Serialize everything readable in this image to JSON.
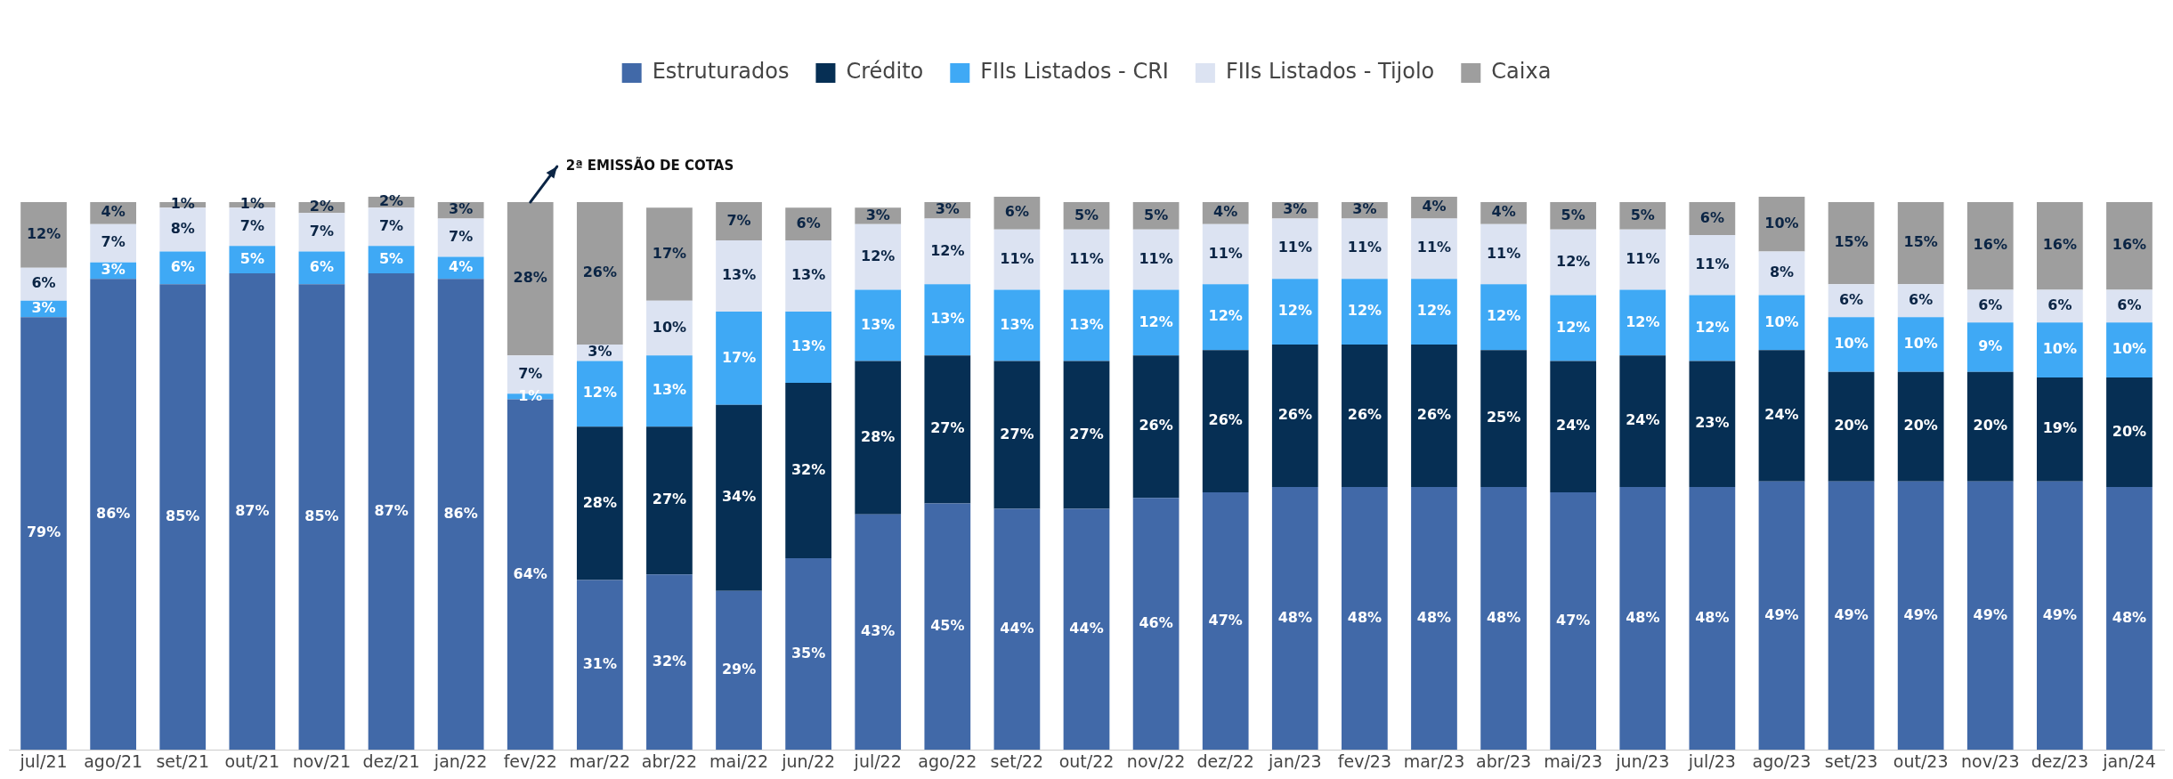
{
  "chart_data": {
    "type": "bar",
    "stacked": true,
    "legend": "top",
    "grid": false,
    "tick_labels": "x",
    "categories": [
      "jul/21",
      "ago/21",
      "set/21",
      "out/21",
      "nov/21",
      "dez/21",
      "jan/22",
      "fev/22",
      "mar/22",
      "abr/22",
      "mai/22",
      "jun/22",
      "jul/22",
      "ago/22",
      "set/22",
      "out/22",
      "nov/22",
      "dez/22",
      "jan/23",
      "fev/23",
      "mar/23",
      "abr/23",
      "mai/23",
      "jun/23",
      "jul/23",
      "ago/23",
      "set/23",
      "out/23",
      "nov/23",
      "dez/23",
      "jan/24"
    ],
    "series": [
      {
        "name": "Estruturados",
        "color": "#4169a8",
        "values": [
          79,
          86,
          85,
          87,
          85,
          87,
          86,
          64,
          31,
          32,
          29,
          35,
          43,
          45,
          44,
          44,
          46,
          47,
          48,
          48,
          48,
          48,
          47,
          48,
          48,
          49,
          49,
          49,
          49,
          49,
          48
        ],
        "value_labels": [
          "79%",
          "86%",
          "85%",
          "87%",
          "85%",
          "87%",
          "86%",
          "64%",
          "31%",
          "32%",
          "29%",
          "35%",
          "43%",
          "45%",
          "44%",
          "44%",
          "46%",
          "47%",
          "48%",
          "48%",
          "48%",
          "48%",
          "47%",
          "48%",
          "48%",
          "49%",
          "49%",
          "49%",
          "49%",
          "49%",
          "48%"
        ]
      },
      {
        "name": "Crédito",
        "color": "#062f54",
        "values": [
          null,
          null,
          null,
          null,
          null,
          null,
          null,
          null,
          28,
          27,
          34,
          32,
          28,
          27,
          27,
          27,
          26,
          26,
          26,
          26,
          26,
          25,
          24,
          24,
          23,
          24,
          20,
          20,
          20,
          19,
          20
        ],
        "value_labels": [
          null,
          null,
          null,
          null,
          null,
          null,
          null,
          null,
          "28%",
          "27%",
          "34%",
          "32%",
          "28%",
          "27%",
          "27%",
          "27%",
          "26%",
          "26%",
          "26%",
          "26%",
          "26%",
          "25%",
          "24%",
          "24%",
          "23%",
          "24%",
          "20%",
          "20%",
          "20%",
          "19%",
          "20%"
        ]
      },
      {
        "name": "FIIs Listados - CRI",
        "color": "#3fa9f5",
        "values": [
          3,
          3,
          6,
          5,
          6,
          5,
          4,
          1,
          12,
          13,
          17,
          13,
          13,
          13,
          13,
          13,
          12,
          12,
          12,
          12,
          12,
          12,
          12,
          12,
          12,
          10,
          10,
          10,
          9,
          10,
          10
        ],
        "value_labels": [
          "3%",
          "3%",
          "6%",
          "5%",
          "6%",
          "5%",
          "4%",
          "1%",
          "12%",
          "13%",
          "17%",
          "13%",
          "13%",
          "13%",
          "13%",
          "13%",
          "12%",
          "12%",
          "12%",
          "12%",
          "12%",
          "12%",
          "12%",
          "12%",
          "12%",
          "10%",
          "10%",
          "10%",
          "9%",
          "10%",
          "10%"
        ]
      },
      {
        "name": "FIIs Listados - Tijolo",
        "color": "#dce3f2",
        "values": [
          6,
          7,
          8,
          7,
          7,
          7,
          7,
          7,
          3,
          10,
          13,
          13,
          12,
          12,
          11,
          11,
          11,
          11,
          11,
          11,
          11,
          11,
          12,
          11,
          11,
          8,
          6,
          6,
          6,
          6,
          6
        ],
        "value_labels": [
          "6%",
          "7%",
          "8%",
          "7%",
          "7%",
          "7%",
          "7%",
          "7%",
          "3%",
          "10%",
          "13%",
          "13%",
          "12%",
          "12%",
          "11%",
          "11%",
          "11%",
          "11%",
          "11%",
          "11%",
          "11%",
          "11%",
          "12%",
          "11%",
          "11%",
          "8%",
          "6%",
          "6%",
          "6%",
          "6%",
          "6%"
        ]
      },
      {
        "name": "Caixa",
        "color": "#9e9e9e",
        "values": [
          12,
          4,
          1,
          1,
          2,
          2,
          3,
          28,
          26,
          17,
          7,
          6,
          3,
          3,
          6,
          5,
          5,
          4,
          3,
          3,
          4,
          4,
          5,
          5,
          6,
          10,
          15,
          15,
          16,
          16,
          16
        ],
        "value_labels": [
          "12%",
          "4%",
          "1%",
          "1%",
          "2%",
          "2%",
          "3%",
          "28%",
          "26%",
          "17%",
          "7%",
          "6%",
          "3%",
          "3%",
          "6%",
          "5%",
          "5%",
          "4%",
          "3%",
          "3%",
          "4%",
          "4%",
          "5%",
          "5%",
          "6%",
          "10%",
          "15%",
          "15%",
          "16%",
          "16%",
          "16%"
        ]
      }
    ],
    "annotations": [
      {
        "text": "2ª EMISSÃO DE COTAS",
        "x": "fev/22",
        "y": 100
      }
    ]
  }
}
